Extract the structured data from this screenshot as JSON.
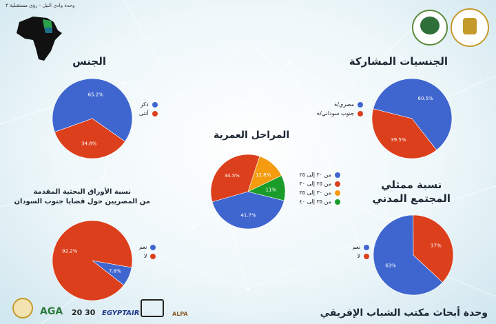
{
  "top_note": "وحدة وادي النيل - رؤى مستقبلية ٣",
  "footer_title": "وحدة أبحاث مكتب الشباب الإفريقي",
  "header_logos": [
    "African Youth Bureau",
    "Ministry of Youth and Sports"
  ],
  "bottom_logos": [
    "AGA",
    "20 30",
    "EGYPTAIR",
    "ALPA"
  ],
  "colors": {
    "blue": "#3f66cf",
    "red": "#dc3f1c",
    "orange": "#f49b10",
    "green": "#1a9c2a"
  },
  "charts": [
    {
      "id": "gender",
      "title": "الجنس",
      "legend": [
        {
          "label": "ذكر",
          "color": "#3f66cf"
        },
        {
          "label": "أنثى",
          "color": "#dc3f1c"
        }
      ]
    },
    {
      "id": "nationality",
      "title": "الجنسيات المشاركة",
      "legend": [
        {
          "label": "مصري/ة",
          "color": "#3f66cf"
        },
        {
          "label": "جنوب سوداني/ة",
          "color": "#dc3f1c"
        }
      ]
    },
    {
      "id": "age",
      "title": "المراحل العمرية",
      "legend": [
        {
          "label": "من ٢٠ إلى ٢٥",
          "color": "#3f66cf"
        },
        {
          "label": "من ٢٥ إلى ٣٠",
          "color": "#dc3f1c"
        },
        {
          "label": "من ٣٠ إلى ٣٥",
          "color": "#f49b10"
        },
        {
          "label": "من ٣٥ إلى ٤٠",
          "color": "#1a9c2a"
        }
      ]
    },
    {
      "id": "papers",
      "title_lines": [
        "نسبة الأوراق البحثية المقدمة",
        "من المصريين حول قضايا جنوب السودان"
      ],
      "legend": [
        {
          "label": "نعم",
          "color": "#3f66cf"
        },
        {
          "label": "لا",
          "color": "#dc3f1c"
        }
      ]
    },
    {
      "id": "civil",
      "title_lines": [
        "نسبة ممثلي",
        "المجتمع المدني"
      ],
      "legend": [
        {
          "label": "نعم",
          "color": "#3f66cf"
        },
        {
          "label": "لا",
          "color": "#dc3f1c"
        }
      ]
    }
  ],
  "chart_data": [
    {
      "type": "pie",
      "title": "الجنس",
      "slices": [
        {
          "label": "ذكر",
          "value": 65.2,
          "display": "65.2%"
        },
        {
          "label": "أنثى",
          "value": 34.8,
          "display": "34.8%"
        }
      ]
    },
    {
      "type": "pie",
      "title": "الجنسيات المشاركة",
      "slices": [
        {
          "label": "مصري/ة",
          "value": 60.5,
          "display": "60.5%"
        },
        {
          "label": "جنوب سوداني/ة",
          "value": 39.5,
          "display": "39.5%"
        }
      ]
    },
    {
      "type": "pie",
      "title": "المراحل العمرية",
      "slices": [
        {
          "label": "من ٢٠ إلى ٢٥",
          "value": 41.7,
          "display": "41.7%"
        },
        {
          "label": "من ٢٥ إلى ٣٠",
          "value": 34.5,
          "display": "34.5%"
        },
        {
          "label": "من ٣٠ إلى ٣٥",
          "value": 12.8,
          "display": "12.8%"
        },
        {
          "label": "من ٣٥ إلى ٤٠",
          "value": 11,
          "display": "11%"
        }
      ]
    },
    {
      "type": "pie",
      "title": "نسبة الأوراق البحثية المقدمة من المصريين حول قضايا جنوب السودان",
      "slices": [
        {
          "label": "نعم",
          "value": 7.8,
          "display": "7.8%"
        },
        {
          "label": "لا",
          "value": 92.2,
          "display": "92.2%"
        }
      ]
    },
    {
      "type": "pie",
      "title": "نسبة ممثلي المجتمع المدني",
      "slices": [
        {
          "label": "نعم",
          "value": 63,
          "display": "63%"
        },
        {
          "label": "لا",
          "value": 37,
          "display": "37%"
        }
      ]
    }
  ]
}
